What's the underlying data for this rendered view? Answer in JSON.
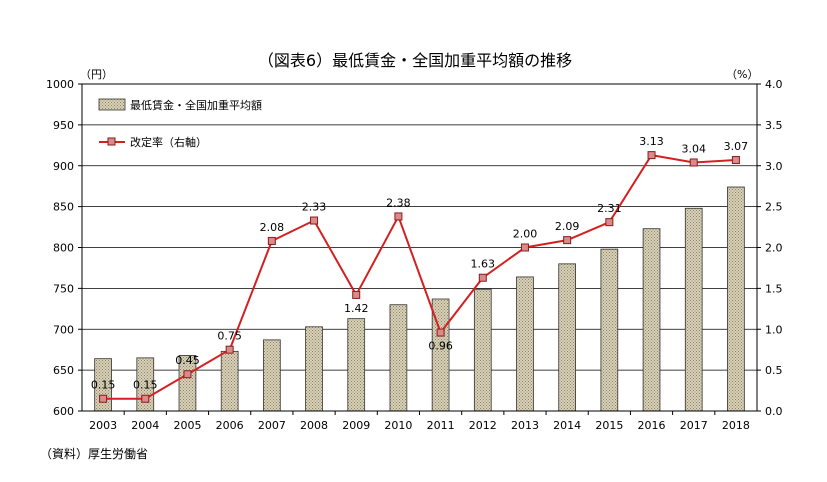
{
  "chart_data": {
    "type": "bar+line",
    "title": "（図表6）最低賃金・全国加重平均額の推移",
    "left_unit": "（円）",
    "right_unit": "（%）",
    "categories": [
      "2003",
      "2004",
      "2005",
      "2006",
      "2007",
      "2008",
      "2009",
      "2010",
      "2011",
      "2012",
      "2013",
      "2014",
      "2015",
      "2016",
      "2017",
      "2018"
    ],
    "left_axis": {
      "min": 600,
      "max": 1000,
      "step": 50,
      "ticks": [
        "600",
        "650",
        "700",
        "750",
        "800",
        "850",
        "900",
        "950",
        "1000"
      ]
    },
    "right_axis": {
      "min": 0.0,
      "max": 4.0,
      "step": 0.5,
      "ticks": [
        "0.0",
        "0.5",
        "1.0",
        "1.5",
        "2.0",
        "2.5",
        "3.0",
        "3.5",
        "4.0"
      ]
    },
    "series": [
      {
        "name": "最低賃金・全国加重平均額",
        "type": "bar",
        "axis": "left",
        "values": [
          664,
          665,
          668,
          673,
          687,
          703,
          713,
          730,
          737,
          749,
          764,
          780,
          798,
          823,
          848,
          874
        ]
      },
      {
        "name": "改定率（右軸）",
        "type": "line",
        "axis": "right",
        "values": [
          0.15,
          0.15,
          0.45,
          0.75,
          2.08,
          2.33,
          1.42,
          2.38,
          0.96,
          1.63,
          2.0,
          2.09,
          2.31,
          3.13,
          3.04,
          3.07
        ],
        "labels": [
          "0.15",
          "0.15",
          "0.45",
          "0.75",
          "2.08",
          "2.33",
          "1.42",
          "2.38",
          "0.96",
          "1.63",
          "2.00",
          "2.09",
          "2.31",
          "3.13",
          "3.04",
          "3.07"
        ]
      }
    ],
    "grid": true,
    "legend_position": "top-left",
    "colors": {
      "bar_fill": "#d9d2b8",
      "bar_hatch": "#8a8366",
      "bar_stroke": "#333333",
      "line": "#d42020",
      "marker_fill": "#d98a8a",
      "marker_stroke": "#8b1a1a"
    }
  },
  "source_note": "（資料）厚生労働省"
}
